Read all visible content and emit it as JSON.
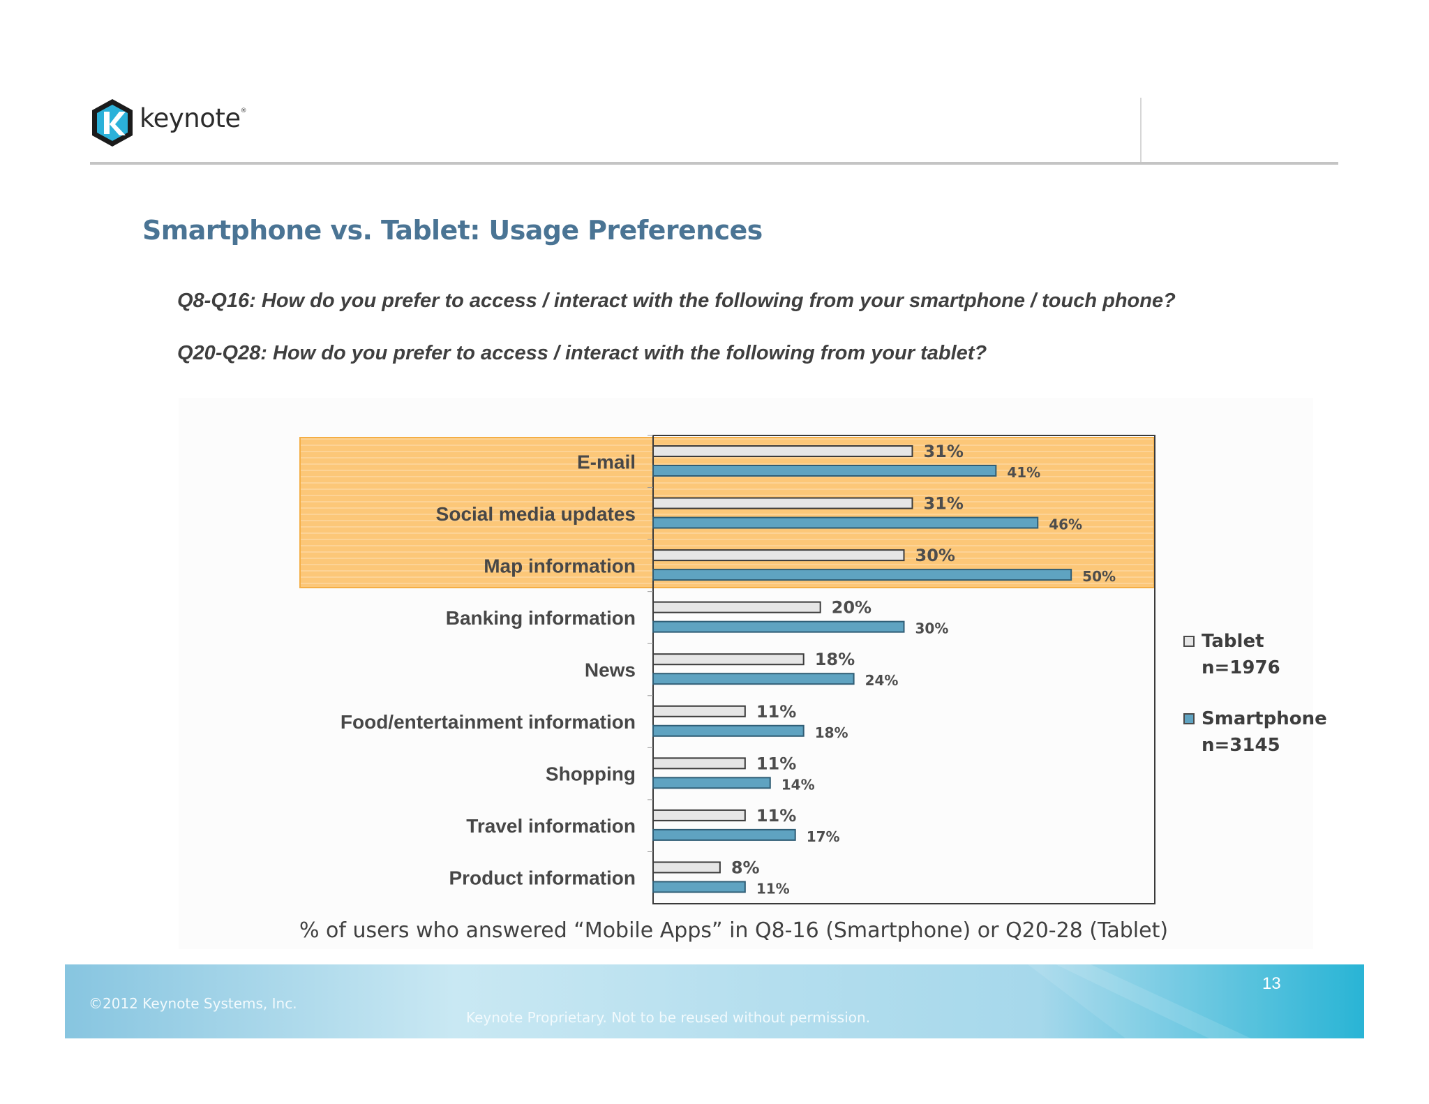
{
  "brand": {
    "name": "keynote",
    "colors": {
      "accent": "#4a7494",
      "smartphone": "#5fa3c1",
      "tablet": "#e6e6e6",
      "highlight": "#fcc778"
    }
  },
  "slide": {
    "title": "Smartphone vs. Tablet: Usage Preferences",
    "question1": "Q8-Q16: How do you prefer to access / interact with the following from your smartphone / touch phone?",
    "question2": "Q20-Q28: How do you prefer to access / interact with the following from your tablet?",
    "caption": "% of users who answered “Mobile Apps” in Q8-16 (Smartphone) or Q20-28 (Tablet)"
  },
  "chart_data": {
    "type": "bar",
    "orientation": "horizontal",
    "categories": [
      "E-mail",
      "Social media updates",
      "Map information",
      "Banking information",
      "News",
      "Food/entertainment information",
      "Shopping",
      "Travel information",
      "Product information"
    ],
    "series": [
      {
        "name": "Tablet",
        "legend_line1": "Tablet",
        "legend_line2": "n=1976",
        "values": [
          31,
          31,
          30,
          20,
          18,
          11,
          11,
          11,
          8
        ],
        "color": "#e6e6e6"
      },
      {
        "name": "Smartphone",
        "legend_line1": "Smartphone",
        "legend_line2": "n=3145",
        "values": [
          41,
          46,
          50,
          30,
          24,
          18,
          14,
          17,
          11
        ],
        "color": "#5fa3c1"
      }
    ],
    "value_suffix": "%",
    "xlim": [
      0,
      60
    ],
    "highlighted_categories": [
      "E-mail",
      "Social media updates",
      "Map information"
    ],
    "legend_position": "right",
    "grid": false
  },
  "footer": {
    "page_number": "13",
    "copyright": "©2012 Keynote Systems, Inc.",
    "proprietary": "Keynote Proprietary. Not to be reused without permission."
  }
}
